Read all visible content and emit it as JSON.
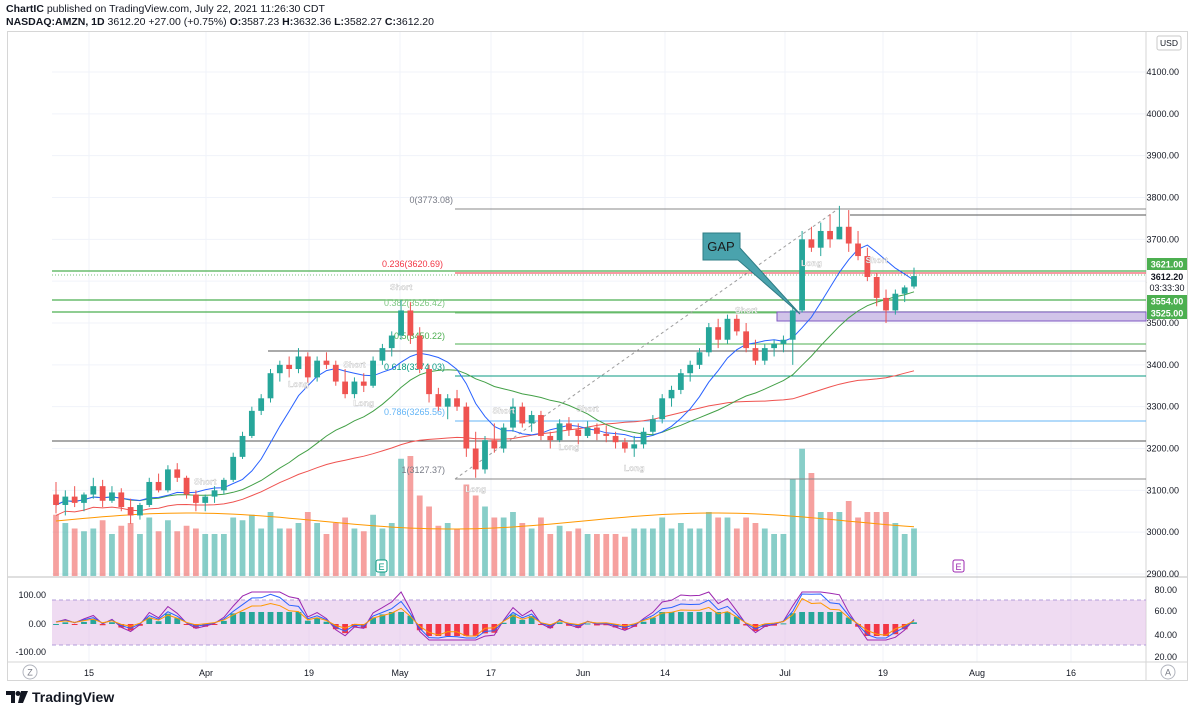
{
  "header": {
    "publisher": "ChartIC",
    "published_line": "published on TradingView.com, July 22, 2021 11:26:30 CDT",
    "symbol": "NASDAQ:AMZN, 1D",
    "last": "3612.20",
    "change": "+27.00 (+0.75%)",
    "o_label": "O:",
    "o_val": "3587.23",
    "h_label": "H:",
    "h_val": "3632.36",
    "l_label": "L:",
    "l_val": "3582.27",
    "c_label": "C:",
    "c_val": "3612.20"
  },
  "price_axis": {
    "currency": "USD",
    "ticks": [
      "4100.00",
      "4000.00",
      "3900.00",
      "3800.00",
      "3700.00",
      "3600.00",
      "3500.00",
      "3400.00",
      "3300.00",
      "3200.00",
      "3100.00",
      "3000.00",
      "2900.00"
    ]
  },
  "price_labels": {
    "level_3621": "3621.00",
    "last_price": "3612.20",
    "countdown": "03:33:30",
    "level_3554": "3554.00",
    "level_3525": "3525.00"
  },
  "fib_labels": {
    "f0": "0(3773.08)",
    "f236": "0.236(3620.69)",
    "f382": "0.382(3526.42)",
    "f5": "0.5(3450.22)",
    "f618": "0.618(3374.03)",
    "f786": "0.786(3265.56)",
    "f1": "1(3127.37)"
  },
  "annotations": {
    "gap": "GAP",
    "short": "Short",
    "long": "Long",
    "earnings": "E"
  },
  "oscillator": {
    "left_ticks": [
      "100.00",
      "0.00",
      "-100.00"
    ],
    "right_ticks": [
      "80.00",
      "60.00",
      "40.00",
      "20.00"
    ]
  },
  "time_axis": {
    "ticks": [
      "15",
      "Apr",
      "19",
      "May",
      "17",
      "Jun",
      "14",
      "Jul",
      "19",
      "Aug",
      "16"
    ],
    "left_btn": "Z",
    "right_btn": "A"
  },
  "footer": {
    "brand": "TradingView"
  },
  "chart_data": {
    "type": "candlestick",
    "title": "NASDAQ:AMZN, 1D",
    "ylabel": "USD",
    "ylim": [
      2900,
      4150
    ],
    "xlabel": "",
    "x_ticks": [
      "15",
      "Apr",
      "19",
      "May",
      "17",
      "Jun",
      "14",
      "Jul",
      "19",
      "Aug",
      "16"
    ],
    "ohlc": [
      [
        3090,
        3120,
        3045,
        3065
      ],
      [
        3065,
        3100,
        3040,
        3085
      ],
      [
        3085,
        3110,
        3060,
        3070
      ],
      [
        3070,
        3095,
        3050,
        3090
      ],
      [
        3090,
        3130,
        3080,
        3110
      ],
      [
        3110,
        3125,
        3060,
        3075
      ],
      [
        3075,
        3110,
        3070,
        3095
      ],
      [
        3095,
        3105,
        3050,
        3060
      ],
      [
        3060,
        3080,
        3020,
        3040
      ],
      [
        3040,
        3070,
        3030,
        3065
      ],
      [
        3065,
        3130,
        3060,
        3120
      ],
      [
        3120,
        3140,
        3095,
        3100
      ],
      [
        3100,
        3160,
        3095,
        3150
      ],
      [
        3150,
        3165,
        3120,
        3130
      ],
      [
        3130,
        3135,
        3080,
        3090
      ],
      [
        3090,
        3100,
        3050,
        3070
      ],
      [
        3070,
        3090,
        3050,
        3085
      ],
      [
        3085,
        3110,
        3070,
        3100
      ],
      [
        3100,
        3130,
        3090,
        3125
      ],
      [
        3125,
        3190,
        3120,
        3180
      ],
      [
        3180,
        3240,
        3175,
        3230
      ],
      [
        3230,
        3300,
        3225,
        3290
      ],
      [
        3290,
        3330,
        3280,
        3320
      ],
      [
        3320,
        3390,
        3310,
        3380
      ],
      [
        3380,
        3410,
        3360,
        3400
      ],
      [
        3400,
        3420,
        3370,
        3390
      ],
      [
        3390,
        3440,
        3380,
        3420
      ],
      [
        3420,
        3430,
        3350,
        3370
      ],
      [
        3370,
        3420,
        3360,
        3410
      ],
      [
        3410,
        3430,
        3390,
        3400
      ],
      [
        3400,
        3410,
        3350,
        3360
      ],
      [
        3360,
        3390,
        3320,
        3330
      ],
      [
        3330,
        3370,
        3320,
        3360
      ],
      [
        3360,
        3380,
        3335,
        3350
      ],
      [
        3350,
        3420,
        3345,
        3410
      ],
      [
        3410,
        3450,
        3400,
        3440
      ],
      [
        3440,
        3480,
        3420,
        3470
      ],
      [
        3470,
        3555,
        3460,
        3530
      ],
      [
        3530,
        3550,
        3450,
        3470
      ],
      [
        3470,
        3490,
        3380,
        3390
      ],
      [
        3390,
        3400,
        3310,
        3330
      ],
      [
        3330,
        3345,
        3290,
        3300
      ],
      [
        3300,
        3330,
        3270,
        3320
      ],
      [
        3320,
        3340,
        3290,
        3300
      ],
      [
        3300,
        3310,
        3180,
        3200
      ],
      [
        3200,
        3240,
        3130,
        3150
      ],
      [
        3150,
        3230,
        3140,
        3220
      ],
      [
        3220,
        3260,
        3190,
        3200
      ],
      [
        3200,
        3260,
        3190,
        3250
      ],
      [
        3250,
        3320,
        3240,
        3300
      ],
      [
        3300,
        3310,
        3250,
        3260
      ],
      [
        3260,
        3290,
        3240,
        3280
      ],
      [
        3280,
        3290,
        3220,
        3230
      ],
      [
        3230,
        3240,
        3200,
        3220
      ],
      [
        3220,
        3270,
        3215,
        3260
      ],
      [
        3260,
        3275,
        3230,
        3245
      ],
      [
        3245,
        3260,
        3210,
        3230
      ],
      [
        3230,
        3265,
        3225,
        3250
      ],
      [
        3250,
        3260,
        3220,
        3235
      ],
      [
        3235,
        3255,
        3215,
        3230
      ],
      [
        3230,
        3240,
        3200,
        3215
      ],
      [
        3215,
        3225,
        3190,
        3200
      ],
      [
        3200,
        3230,
        3180,
        3210
      ],
      [
        3210,
        3250,
        3200,
        3240
      ],
      [
        3240,
        3280,
        3230,
        3270
      ],
      [
        3270,
        3330,
        3260,
        3320
      ],
      [
        3320,
        3350,
        3300,
        3340
      ],
      [
        3340,
        3390,
        3330,
        3380
      ],
      [
        3380,
        3410,
        3360,
        3400
      ],
      [
        3400,
        3440,
        3390,
        3430
      ],
      [
        3430,
        3500,
        3420,
        3490
      ],
      [
        3490,
        3510,
        3440,
        3460
      ],
      [
        3460,
        3520,
        3450,
        3510
      ],
      [
        3510,
        3520,
        3470,
        3480
      ],
      [
        3480,
        3500,
        3430,
        3440
      ],
      [
        3440,
        3460,
        3400,
        3410
      ],
      [
        3410,
        3450,
        3400,
        3440
      ],
      [
        3440,
        3460,
        3420,
        3450
      ],
      [
        3450,
        3470,
        3430,
        3460
      ],
      [
        3460,
        3540,
        3400,
        3530
      ],
      [
        3530,
        3720,
        3525,
        3700
      ],
      [
        3700,
        3730,
        3670,
        3680
      ],
      [
        3680,
        3740,
        3660,
        3720
      ],
      [
        3720,
        3760,
        3680,
        3700
      ],
      [
        3700,
        3780,
        3700,
        3730
      ],
      [
        3730,
        3770,
        3670,
        3690
      ],
      [
        3690,
        3720,
        3650,
        3660
      ],
      [
        3660,
        3680,
        3600,
        3610
      ],
      [
        3610,
        3620,
        3540,
        3560
      ],
      [
        3560,
        3580,
        3500,
        3530
      ],
      [
        3530,
        3580,
        3520,
        3570
      ],
      [
        3570,
        3590,
        3550,
        3585
      ],
      [
        3587.23,
        3632.36,
        3582.27,
        3612.2
      ]
    ]
  }
}
